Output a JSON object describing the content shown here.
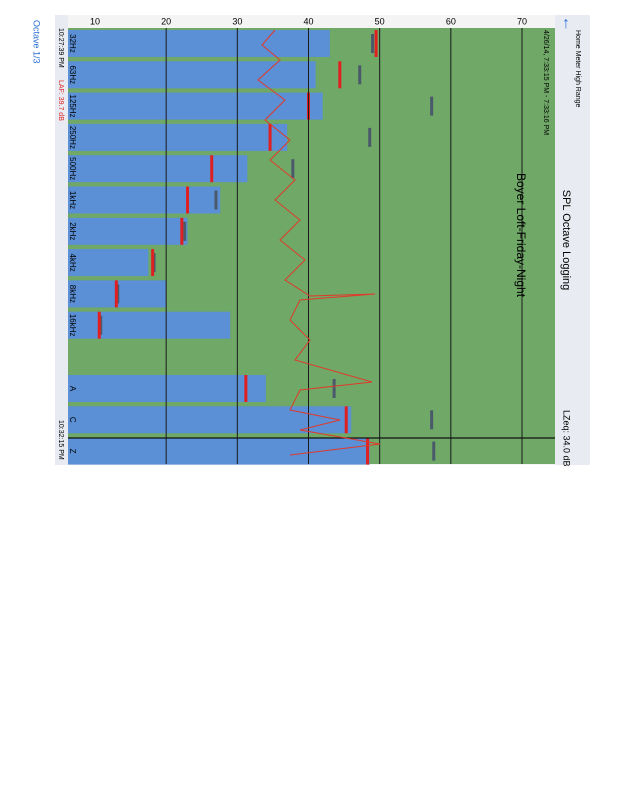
{
  "app": {
    "title": "SPL Octave Logging",
    "session": "Boyer Loft-Friday-Night",
    "time_range": "4/26/14, 7:33:15 PM - 7:33:16 PM",
    "meter": "Home Meter High Range",
    "leq": "LZeq: 34.0 dB",
    "mode": "Octave 1/3",
    "clock_top": "10:27:39 PM",
    "clock_bottom": "10:32:15 PM",
    "readout": "LAF: 39.7 dB"
  },
  "axis": {
    "ticks": [
      10,
      20,
      30,
      40,
      50,
      60,
      70
    ]
  },
  "bands": [
    {
      "label": "32Hz",
      "level": 43,
      "recent": 49.5,
      "max": 49
    },
    {
      "label": "63Hz",
      "level": 41,
      "recent": 44.4,
      "max": 47.2
    },
    {
      "label": "125Hz",
      "level": 42,
      "recent": 40,
      "max": 57.3
    },
    {
      "label": "250Hz",
      "level": 37,
      "recent": 34.6,
      "max": 48.6
    },
    {
      "label": "500Hz",
      "level": 31.4,
      "recent": 26.4,
      "max": 37.8
    },
    {
      "label": "1kHz",
      "level": 27.6,
      "recent": 23,
      "max": 27
    },
    {
      "label": "2kHz",
      "level": 23,
      "recent": 22.2,
      "max": 22.6
    },
    {
      "label": "4kHz",
      "level": 17.5,
      "recent": 18.1,
      "max": 18.3
    },
    {
      "label": "8kHz",
      "level": 20,
      "recent": 13,
      "max": 13.2
    },
    {
      "label": "16kHz",
      "level": 29,
      "recent": 10.6,
      "max": 10.8
    },
    {
      "label": "A",
      "level": 34,
      "recent": 31.2,
      "max": 43.6
    },
    {
      "label": "C",
      "level": 46,
      "recent": 45.3,
      "max": 57.3
    },
    {
      "label": "Z",
      "level": 48.6,
      "recent": 48.3,
      "max": 57.6
    }
  ]
}
